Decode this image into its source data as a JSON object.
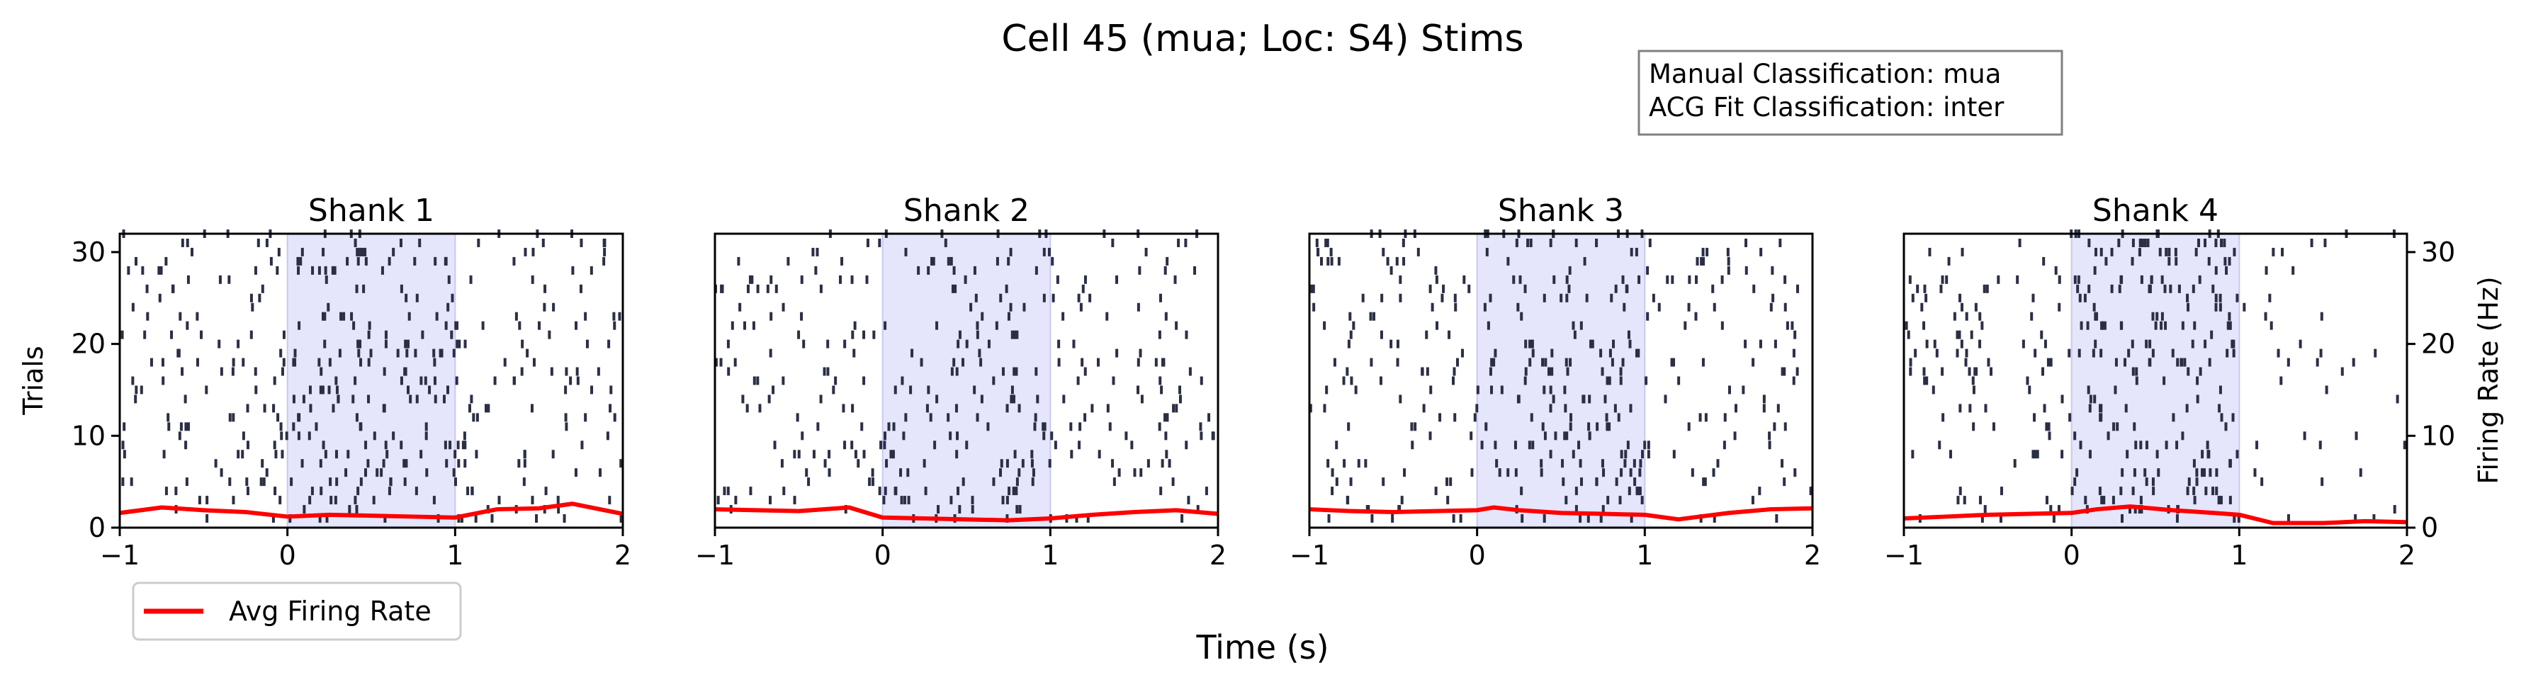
{
  "figure": {
    "title": "Cell 45 (mua; Loc: S4) Stims",
    "info_box": {
      "line1": "Manual Classification: mua",
      "line2": "ACG Fit Classification: inter"
    },
    "xlabel": "Time (s)",
    "ylabel_left": "Trials",
    "ylabel_right": "Firing Rate (Hz)",
    "legend": {
      "label": "Avg Firing Rate",
      "color": "#ff0000",
      "location": "lower-left"
    }
  },
  "colors": {
    "raster_tick": "#2b2f45",
    "stim_shade": "#e5e5fc",
    "stim_edge": "#c8c8f4",
    "rate_line": "#ff0000"
  },
  "chart_data": [
    {
      "type": "raster",
      "title": "Shank 1",
      "xlim": [
        -1,
        2
      ],
      "ylim": [
        0,
        32
      ],
      "xticks": [
        -1,
        0,
        1,
        2
      ],
      "yticks": [
        0,
        10,
        20,
        30
      ],
      "stim_window": [
        0,
        1
      ],
      "trial_count": 32,
      "rate_series": {
        "name": "Avg Firing Rate",
        "ylim": [
          0,
          32
        ],
        "x": [
          -1.0,
          -0.75,
          -0.5,
          -0.25,
          0.0,
          0.25,
          0.5,
          0.75,
          1.0,
          1.25,
          1.5,
          1.7,
          2.0
        ],
        "y": [
          1.6,
          2.2,
          1.9,
          1.7,
          1.2,
          1.4,
          1.3,
          1.2,
          1.1,
          2.0,
          2.1,
          2.6,
          1.5
        ]
      }
    },
    {
      "type": "raster",
      "title": "Shank 2",
      "xlim": [
        -1,
        2
      ],
      "ylim": [
        0,
        32
      ],
      "xticks": [
        -1,
        0,
        1,
        2
      ],
      "yticks": [
        0,
        10,
        20,
        30
      ],
      "stim_window": [
        0,
        1
      ],
      "trial_count": 32,
      "rate_series": {
        "name": "Avg Firing Rate",
        "ylim": [
          0,
          32
        ],
        "x": [
          -1.0,
          -0.75,
          -0.5,
          -0.2,
          0.0,
          0.25,
          0.5,
          0.75,
          1.0,
          1.25,
          1.5,
          1.75,
          2.0
        ],
        "y": [
          2.0,
          1.9,
          1.8,
          2.2,
          1.1,
          1.0,
          0.9,
          0.8,
          1.0,
          1.4,
          1.7,
          1.9,
          1.5
        ]
      }
    },
    {
      "type": "raster",
      "title": "Shank 3",
      "xlim": [
        -1,
        2
      ],
      "ylim": [
        0,
        32
      ],
      "xticks": [
        -1,
        0,
        1,
        2
      ],
      "yticks": [
        0,
        10,
        20,
        30
      ],
      "stim_window": [
        0,
        1
      ],
      "trial_count": 32,
      "rate_series": {
        "name": "Avg Firing Rate",
        "ylim": [
          0,
          32
        ],
        "x": [
          -1.0,
          -0.75,
          -0.5,
          -0.25,
          0.0,
          0.1,
          0.25,
          0.5,
          0.75,
          1.0,
          1.2,
          1.5,
          1.75,
          2.0
        ],
        "y": [
          2.0,
          1.8,
          1.7,
          1.8,
          1.9,
          2.2,
          1.9,
          1.6,
          1.5,
          1.4,
          0.9,
          1.6,
          2.0,
          2.1
        ]
      }
    },
    {
      "type": "raster",
      "title": "Shank 4",
      "xlim": [
        -1,
        2
      ],
      "ylim": [
        0,
        32
      ],
      "xticks": [
        -1,
        0,
        1,
        2
      ],
      "yticks": [
        0,
        10,
        20,
        30
      ],
      "stim_window": [
        0,
        1
      ],
      "trial_count": 32,
      "rate_series": {
        "name": "Avg Firing Rate",
        "ylim": [
          0,
          32
        ],
        "x": [
          -1.0,
          -0.75,
          -0.5,
          -0.25,
          0.0,
          0.15,
          0.35,
          0.6,
          0.85,
          1.0,
          1.2,
          1.5,
          1.75,
          2.0
        ],
        "y": [
          1.0,
          1.2,
          1.4,
          1.5,
          1.6,
          2.0,
          2.3,
          1.9,
          1.6,
          1.4,
          0.5,
          0.5,
          0.7,
          0.6
        ]
      }
    }
  ]
}
